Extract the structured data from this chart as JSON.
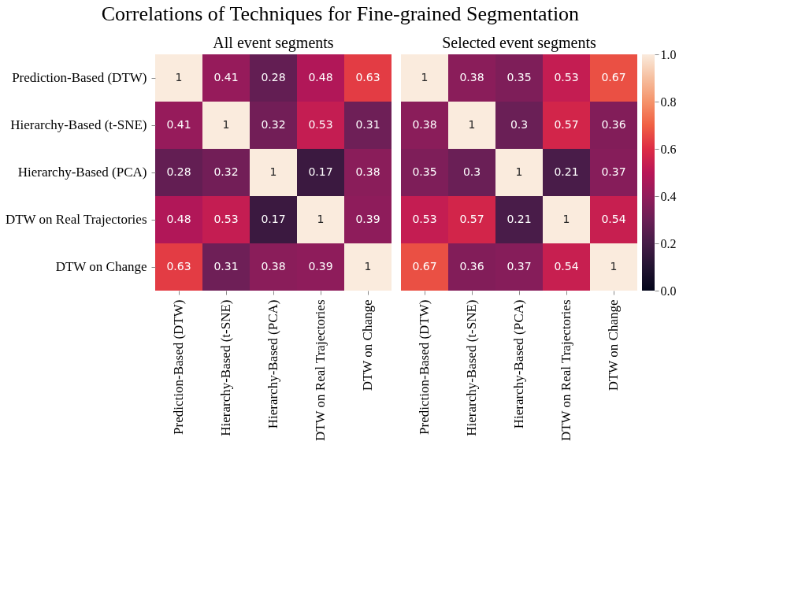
{
  "chart_data": [
    {
      "type": "heatmap",
      "title": "Correlations of Techniques for Fine-grained Segmentation",
      "subtitle": "All event segments",
      "categories": [
        "Prediction-Based (DTW)",
        "Hierarchy-Based (t-SNE)",
        "Hierarchy-Based (PCA)",
        "DTW on Real Trajectories",
        "DTW on Change"
      ],
      "y_categories": [
        "Prediction-Based (DTW)",
        "Hierarchy-Based (t-SNE)",
        "Hierarchy-Based (PCA)",
        "DTW on Real Trajectories",
        "DTW on Change"
      ],
      "cells": [
        [
          1,
          0.41,
          0.28,
          0.48,
          0.63
        ],
        [
          0.41,
          1,
          0.32,
          0.53,
          0.31
        ],
        [
          0.28,
          0.32,
          1,
          0.17,
          0.38
        ],
        [
          0.48,
          0.53,
          0.17,
          1,
          0.39
        ],
        [
          0.63,
          0.31,
          0.38,
          0.39,
          1
        ]
      ],
      "data_labels": true,
      "grid": false
    },
    {
      "type": "heatmap",
      "subtitle": "Selected event segments",
      "categories": [
        "Prediction-Based (DTW)",
        "Hierarchy-Based (t-SNE)",
        "Hierarchy-Based (PCA)",
        "DTW on Real Trajectories",
        "DTW on Change"
      ],
      "y_categories": [
        null,
        null,
        null,
        null,
        null
      ],
      "cells": [
        [
          1,
          0.38,
          0.35,
          0.53,
          0.67
        ],
        [
          0.38,
          1,
          0.3,
          0.57,
          0.36
        ],
        [
          0.35,
          0.3,
          1,
          0.21,
          0.37
        ],
        [
          0.53,
          0.57,
          0.21,
          1,
          0.54
        ],
        [
          0.67,
          0.36,
          0.37,
          0.54,
          1
        ]
      ],
      "clim": [
        0,
        1
      ],
      "cticks": [
        {
          "value": 0,
          "label": "0.0"
        },
        0.2,
        0.4,
        0.6,
        0.8,
        {
          "value": 1,
          "label": "1.0"
        }
      ],
      "tick_labels": "x",
      "data_labels": true,
      "grid": false
    }
  ]
}
